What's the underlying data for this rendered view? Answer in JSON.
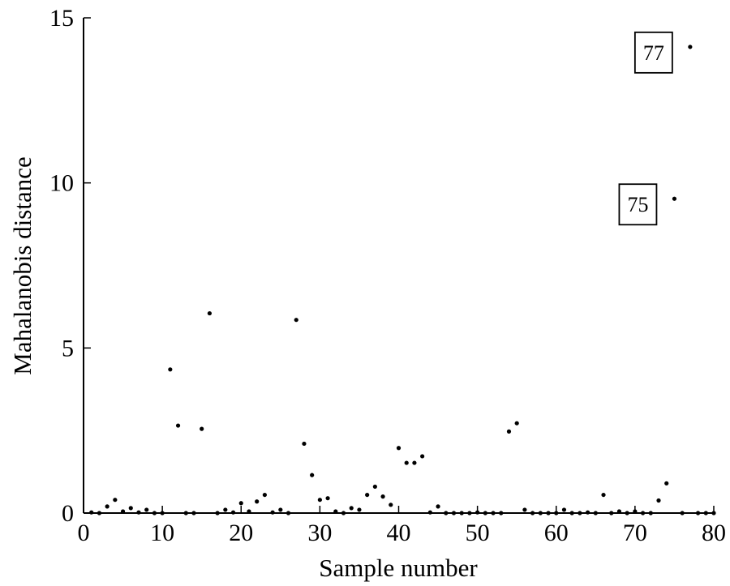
{
  "chart_data": {
    "type": "scatter",
    "xlabel": "Sample number",
    "ylabel": "Mahalanobis distance",
    "xlim": [
      0,
      80
    ],
    "ylim": [
      0,
      15
    ],
    "x_ticks": [
      0,
      10,
      20,
      30,
      40,
      50,
      60,
      70,
      80
    ],
    "y_ticks": [
      0,
      5,
      10,
      15
    ],
    "grid": false,
    "legend": "none",
    "point_color": "#000000",
    "points": [
      {
        "x": 1,
        "y": 0.02
      },
      {
        "x": 2,
        "y": 0.0
      },
      {
        "x": 3,
        "y": 0.2
      },
      {
        "x": 4,
        "y": 0.4
      },
      {
        "x": 5,
        "y": 0.05
      },
      {
        "x": 6,
        "y": 0.15
      },
      {
        "x": 7,
        "y": 0.02
      },
      {
        "x": 8,
        "y": 0.1
      },
      {
        "x": 9,
        "y": 0.0
      },
      {
        "x": 10,
        "y": 0.0
      },
      {
        "x": 11,
        "y": 4.35
      },
      {
        "x": 12,
        "y": 2.65
      },
      {
        "x": 13,
        "y": 0.0
      },
      {
        "x": 14,
        "y": 0.0
      },
      {
        "x": 15,
        "y": 2.55
      },
      {
        "x": 16,
        "y": 6.05
      },
      {
        "x": 17,
        "y": 0.0
      },
      {
        "x": 18,
        "y": 0.1
      },
      {
        "x": 19,
        "y": 0.02
      },
      {
        "x": 20,
        "y": 0.3
      },
      {
        "x": 21,
        "y": 0.05
      },
      {
        "x": 22,
        "y": 0.35
      },
      {
        "x": 23,
        "y": 0.55
      },
      {
        "x": 24,
        "y": 0.02
      },
      {
        "x": 25,
        "y": 0.1
      },
      {
        "x": 26,
        "y": 0.0
      },
      {
        "x": 27,
        "y": 5.85
      },
      {
        "x": 28,
        "y": 2.1
      },
      {
        "x": 29,
        "y": 1.15
      },
      {
        "x": 30,
        "y": 0.4
      },
      {
        "x": 31,
        "y": 0.45
      },
      {
        "x": 32,
        "y": 0.05
      },
      {
        "x": 33,
        "y": 0.0
      },
      {
        "x": 34,
        "y": 0.15
      },
      {
        "x": 35,
        "y": 0.1
      },
      {
        "x": 36,
        "y": 0.55
      },
      {
        "x": 37,
        "y": 0.8
      },
      {
        "x": 38,
        "y": 0.5
      },
      {
        "x": 39,
        "y": 0.25
      },
      {
        "x": 40,
        "y": 1.97
      },
      {
        "x": 41,
        "y": 1.52
      },
      {
        "x": 42,
        "y": 1.52
      },
      {
        "x": 43,
        "y": 1.72
      },
      {
        "x": 44,
        "y": 0.02
      },
      {
        "x": 45,
        "y": 0.2
      },
      {
        "x": 46,
        "y": 0.0
      },
      {
        "x": 47,
        "y": 0.0
      },
      {
        "x": 48,
        "y": 0.0
      },
      {
        "x": 49,
        "y": 0.0
      },
      {
        "x": 50,
        "y": 0.02
      },
      {
        "x": 51,
        "y": 0.0
      },
      {
        "x": 52,
        "y": 0.0
      },
      {
        "x": 53,
        "y": 0.0
      },
      {
        "x": 54,
        "y": 2.47
      },
      {
        "x": 55,
        "y": 2.72
      },
      {
        "x": 56,
        "y": 0.1
      },
      {
        "x": 57,
        "y": 0.0
      },
      {
        "x": 58,
        "y": 0.0
      },
      {
        "x": 59,
        "y": 0.0
      },
      {
        "x": 60,
        "y": 0.0
      },
      {
        "x": 61,
        "y": 0.1
      },
      {
        "x": 62,
        "y": 0.0
      },
      {
        "x": 63,
        "y": 0.0
      },
      {
        "x": 64,
        "y": 0.02
      },
      {
        "x": 65,
        "y": 0.0
      },
      {
        "x": 66,
        "y": 0.55
      },
      {
        "x": 67,
        "y": 0.0
      },
      {
        "x": 68,
        "y": 0.05
      },
      {
        "x": 69,
        "y": 0.0
      },
      {
        "x": 70,
        "y": 0.05
      },
      {
        "x": 71,
        "y": 0.0
      },
      {
        "x": 72,
        "y": 0.0
      },
      {
        "x": 73,
        "y": 0.38
      },
      {
        "x": 74,
        "y": 0.9
      },
      {
        "x": 75,
        "y": 9.52
      },
      {
        "x": 76,
        "y": 0.0
      },
      {
        "x": 77,
        "y": 14.12
      },
      {
        "x": 78,
        "y": 0.0
      },
      {
        "x": 79,
        "y": 0.0
      },
      {
        "x": 80,
        "y": 0.0
      }
    ],
    "annotations": [
      {
        "text": "77",
        "point_x": 77,
        "point_y": 14.12
      },
      {
        "text": "75",
        "point_x": 75,
        "point_y": 9.52
      }
    ]
  }
}
